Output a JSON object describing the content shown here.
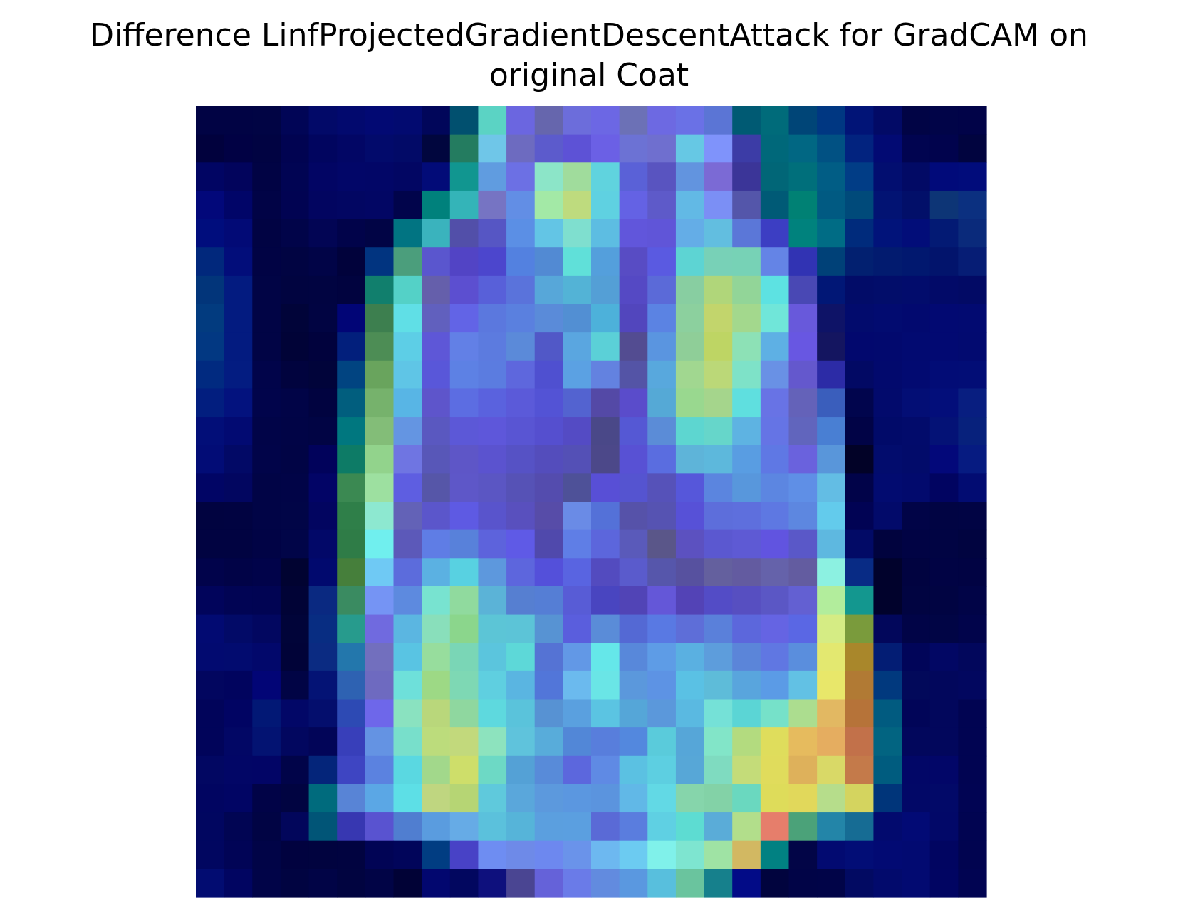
{
  "chart_data": {
    "type": "heatmap",
    "title_lines": [
      "Difference LinfProjectedGradientDescentAttack for GradCAM on",
      "original Coat"
    ],
    "grid": false,
    "axes_visible": false,
    "rows": 28,
    "cols": 28,
    "cells": [
      [
        "#010344",
        "#010344",
        "#010444",
        "#010556",
        "#020968",
        "#02096e",
        "#020973",
        "#020a70",
        "#01065a",
        "#01506f",
        "#5bd3c4",
        "#6b66e0",
        "#6666ad",
        "#6c6ddb",
        "#6c67e4",
        "#6c71b6",
        "#6d69e2",
        "#6a71e6",
        "#5b75d5",
        "#005a73",
        "#006b7a",
        "#004577",
        "#003782",
        "#011477",
        "#020a66",
        "#010445",
        "#010448",
        "#010348"
      ],
      [
        "#01013d",
        "#010144",
        "#010342",
        "#010351",
        "#01055f",
        "#020665",
        "#020a6b",
        "#020a67",
        "#01063e",
        "#247c60",
        "#6fc6e8",
        "#6d6bc0",
        "#5c5bcc",
        "#5d52d6",
        "#6b60e5",
        "#6c72d4",
        "#6f6fcf",
        "#66c8e4",
        "#7f93fb",
        "#3c3ca6",
        "#00687a",
        "#016783",
        "#015183",
        "#02237f",
        "#020a73",
        "#010450",
        "#01034d",
        "#01043f"
      ],
      [
        "#010563",
        "#02045c",
        "#010344",
        "#010453",
        "#020564",
        "#020668",
        "#020667",
        "#020663",
        "#020b78",
        "#119690",
        "#609ce0",
        "#6c70e4",
        "#8ce5c8",
        "#a0dc9c",
        "#60d3de",
        "#5a61d7",
        "#5954c0",
        "#6294df",
        "#7b6ad5",
        "#3b3598",
        "#016677",
        "#006f7b",
        "#015d85",
        "#013d86",
        "#020e70",
        "#020a65",
        "#010a7a",
        "#010c7b"
      ],
      [
        "#02087a",
        "#010568",
        "#010346",
        "#010352",
        "#020560",
        "#020662",
        "#020664",
        "#01044b",
        "#00817c",
        "#34b4b8",
        "#7674c3",
        "#628ee5",
        "#a3e9a6",
        "#bedb7e",
        "#5fd1e1",
        "#6462e4",
        "#5e5ac9",
        "#62b9e5",
        "#7b8ff5",
        "#5456aa",
        "#005a76",
        "#008174",
        "#015a82",
        "#004a7a",
        "#021373",
        "#020f69",
        "#0d3576",
        "#0b3080"
      ],
      [
        "#000d7d",
        "#020a76",
        "#010343",
        "#010449",
        "#020554",
        "#01034a",
        "#010445",
        "#017482",
        "#3ab3bd",
        "#524fa9",
        "#5656c4",
        "#5b8fe5",
        "#63c5e5",
        "#7fdfcf",
        "#5dbde2",
        "#6156db",
        "#6055d8",
        "#64ade7",
        "#62bee0",
        "#5b77d8",
        "#3c3ec3",
        "#00827d",
        "#006c85",
        "#002b7c",
        "#01137a",
        "#020d79",
        "#031a74",
        "#0a2a7b"
      ],
      [
        "#01287c",
        "#020d7a",
        "#010344",
        "#010442",
        "#010447",
        "#01023b",
        "#013480",
        "#4b9e7c",
        "#5a56ce",
        "#5244c5",
        "#4c46cd",
        "#5381e0",
        "#528ad3",
        "#60e0d9",
        "#549fdc",
        "#584cc4",
        "#5a5ae1",
        "#5dd4d3",
        "#78d1b7",
        "#77d2b6",
        "#6484e6",
        "#3133b3",
        "#004178",
        "#022070",
        "#021b6f",
        "#01186f",
        "#02146c",
        "#061d75"
      ],
      [
        "#02357a",
        "#031b80",
        "#010445",
        "#010440",
        "#010441",
        "#01033f",
        "#117f6d",
        "#54d1c7",
        "#655fab",
        "#5c4fd0",
        "#5860d9",
        "#5a73db",
        "#57a7d9",
        "#53b3d6",
        "#549fd6",
        "#5549c4",
        "#5b6ad8",
        "#88cea1",
        "#b0d67a",
        "#92d598",
        "#5de2e2",
        "#4948b4",
        "#011776",
        "#020c68",
        "#020d6a",
        "#020c6c",
        "#020a68",
        "#020a65"
      ],
      [
        "#023b7f",
        "#031b80",
        "#010445",
        "#010439",
        "#010442",
        "#010576",
        "#3d7f4f",
        "#60dfe6",
        "#6160be",
        "#6264e6",
        "#5b78de",
        "#5a80df",
        "#5a8bd9",
        "#528fd3",
        "#4db1da",
        "#5246bd",
        "#5b83e3",
        "#8cd09e",
        "#c2d56c",
        "#a3d88d",
        "#70e6d9",
        "#6859db",
        "#0e1367",
        "#020b6d",
        "#020b70",
        "#02096f",
        "#020972",
        "#020a71"
      ],
      [
        "#023882",
        "#031b80",
        "#010445",
        "#010337",
        "#01023d",
        "#021f7c",
        "#4d8d55",
        "#5dcee6",
        "#5e57d7",
        "#6280e6",
        "#5c7bdf",
        "#5b8ad9",
        "#5158c7",
        "#5aa6e0",
        "#5bd0d7",
        "#534c91",
        "#5a95e0",
        "#8fce98",
        "#bed564",
        "#8de1b6",
        "#5eb0e4",
        "#6857e2",
        "#141560",
        "#02086e",
        "#02096e",
        "#020a71",
        "#020972",
        "#020a70"
      ],
      [
        "#012a80",
        "#031c81",
        "#01044a",
        "#01033e",
        "#01043a",
        "#014481",
        "#69a45d",
        "#5fc5e6",
        "#5957d9",
        "#5d81e4",
        "#5b7ce0",
        "#5e67dd",
        "#4f50d0",
        "#5ba1e3",
        "#6382e0",
        "#5454a6",
        "#58a8dd",
        "#a1d790",
        "#bbd878",
        "#7ee2c8",
        "#6991e5",
        "#6458cd",
        "#2c2ba6",
        "#020964",
        "#02096d",
        "#020a71",
        "#020c76",
        "#020d76"
      ],
      [
        "#021e7f",
        "#03127e",
        "#01044b",
        "#010447",
        "#010340",
        "#015e7e",
        "#76b26c",
        "#58b5e5",
        "#5e55cb",
        "#5c6de2",
        "#5a62de",
        "#5b5ad9",
        "#5353d5",
        "#5363d0",
        "#5449a6",
        "#5a4ccb",
        "#55a9d6",
        "#99d88f",
        "#a5d58c",
        "#5fdfdf",
        "#6873e5",
        "#6462b9",
        "#3a5ebc",
        "#01054d",
        "#020a6c",
        "#030e75",
        "#030e7a",
        "#081e80"
      ],
      [
        "#020e78",
        "#020a72",
        "#010448",
        "#010446",
        "#010444",
        "#00777f",
        "#83bd78",
        "#6495e2",
        "#5a58c0",
        "#5c58d7",
        "#5e57da",
        "#5955d3",
        "#554fcf",
        "#544bc4",
        "#4a4888",
        "#5558d4",
        "#5b8cd7",
        "#5dd6d0",
        "#66d6ca",
        "#5eb3e2",
        "#6574e5",
        "#6165bd",
        "#497fd3",
        "#010346",
        "#010a69",
        "#020b6b",
        "#041276",
        "#07217c"
      ],
      [
        "#020c76",
        "#020966",
        "#010449",
        "#010445",
        "#01025b",
        "#0d7b66",
        "#92d38c",
        "#6f75e2",
        "#5857b8",
        "#5e56c7",
        "#5b53cf",
        "#5652c5",
        "#544dbc",
        "#5450b6",
        "#4c4889",
        "#5851d4",
        "#5a6de0",
        "#5eb4d9",
        "#5db8dc",
        "#599de2",
        "#5f78e4",
        "#6a62dd",
        "#5996da",
        "#020227",
        "#020c6d",
        "#020b6a",
        "#03087a",
        "#061b81"
      ],
      [
        "#010565",
        "#020660",
        "#010446",
        "#010447",
        "#020466",
        "#3b8952",
        "#9de0a0",
        "#5e5ee1",
        "#5656a8",
        "#5e57c8",
        "#5b56c3",
        "#5652b6",
        "#544cae",
        "#4e5198",
        "#584fd6",
        "#5554d0",
        "#5652b9",
        "#5657da",
        "#5b85df",
        "#5897dc",
        "#5c86e1",
        "#5f8fe6",
        "#63bde4",
        "#010349",
        "#020b70",
        "#020a6d",
        "#010461",
        "#020c72"
      ],
      [
        "#010340",
        "#010341",
        "#010446",
        "#010547",
        "#020560",
        "#2f7f49",
        "#8de8d0",
        "#6362b7",
        "#5b56cb",
        "#5e5ae3",
        "#5954cc",
        "#5950be",
        "#574ca8",
        "#6a8be6",
        "#5471d8",
        "#5652a9",
        "#5653b2",
        "#5751d7",
        "#5d6edb",
        "#5e6fdd",
        "#5e78e2",
        "#5d87e0",
        "#63cbec",
        "#010354",
        "#020a6a",
        "#010447",
        "#010443",
        "#010444"
      ],
      [
        "#010341",
        "#010341",
        "#010345",
        "#010548",
        "#020868",
        "#2f7c47",
        "#70efee",
        "#5c59b9",
        "#5f7de5",
        "#5881da",
        "#5d63dc",
        "#5f5ae6",
        "#5049ac",
        "#5f7ee6",
        "#5c66dc",
        "#5a5aba",
        "#5a5689",
        "#5c51c0",
        "#5b58d0",
        "#5e5ad4",
        "#6154e0",
        "#5a58c8",
        "#5eb8e0",
        "#020a66",
        "#01033e",
        "#010344",
        "#010443",
        "#010440"
      ],
      [
        "#01034b",
        "#010347",
        "#01034a",
        "#010331",
        "#01096e",
        "#467f3b",
        "#6fc9f4",
        "#5c6cdc",
        "#5bb1e2",
        "#58d1e1",
        "#5d98dd",
        "#5d66dd",
        "#5450da",
        "#5964e1",
        "#534bbf",
        "#5a5bcc",
        "#5656ab",
        "#57519f",
        "#64609e",
        "#635ba0",
        "#6562aa",
        "#635ca0",
        "#8cf1e1",
        "#082b85",
        "#01022c",
        "#010340",
        "#010344",
        "#010343"
      ],
      [
        "#01045b",
        "#010454",
        "#010453",
        "#010336",
        "#0a2981",
        "#3a8b61",
        "#7594f4",
        "#5d8adf",
        "#78e3d0",
        "#90da9e",
        "#5bb3d7",
        "#567fd1",
        "#557ed5",
        "#585cd6",
        "#4945c0",
        "#5144b6",
        "#6457d8",
        "#5343b6",
        "#534cc6",
        "#574fc1",
        "#5b57c5",
        "#6360d2",
        "#b2ed9c",
        "#13978f",
        "#01022c",
        "#010441",
        "#010442",
        "#010447"
      ],
      [
        "#020a72",
        "#020a67",
        "#020760",
        "#010439",
        "#082d82",
        "#279b8d",
        "#706adf",
        "#5bb6e1",
        "#89dfbb",
        "#8bd68c",
        "#5cc5d6",
        "#5cc4d7",
        "#5793d3",
        "#5a5edd",
        "#5a8cd8",
        "#5469d4",
        "#5979e3",
        "#5e6ed8",
        "#5a80da",
        "#5c67dc",
        "#6564e3",
        "#5a67e4",
        "#d5ec84",
        "#7a9b3c",
        "#02075b",
        "#010447",
        "#010545",
        "#01044b"
      ],
      [
        "#020a70",
        "#020b6f",
        "#02086b",
        "#010338",
        "#0b2b82",
        "#2377ac",
        "#726fbe",
        "#59c4e3",
        "#97dd9d",
        "#7ad6b6",
        "#5bc5dd",
        "#5dd8d8",
        "#5573d4",
        "#6298e6",
        "#65e7e9",
        "#5888da",
        "#5e9ce6",
        "#5ab0e1",
        "#5d9ddc",
        "#5b85d9",
        "#6077e2",
        "#5a8edd",
        "#e3e870",
        "#a9872b",
        "#031d74",
        "#010559",
        "#020764",
        "#02075c"
      ],
      [
        "#02065f",
        "#01045e",
        "#020576",
        "#010445",
        "#041375",
        "#2e62b2",
        "#6e6ac0",
        "#6ee0da",
        "#9dd985",
        "#7ed8b4",
        "#5fcfe0",
        "#5ab5e1",
        "#5276d9",
        "#6bbaee",
        "#6ae5e6",
        "#5b98dc",
        "#5d93e4",
        "#5ac1e4",
        "#5ebcd9",
        "#59a5dd",
        "#5b9be6",
        "#62c1e4",
        "#e8e76a",
        "#b17a34",
        "#01397e",
        "#02095a",
        "#02075c",
        "#02075f"
      ],
      [
        "#01045a",
        "#010463",
        "#021875",
        "#020767",
        "#040e6d",
        "#2d4ab4",
        "#6e67ea",
        "#8ae2c0",
        "#b9d77b",
        "#8fd79f",
        "#5ed9de",
        "#5ac3db",
        "#5792d3",
        "#5aa0df",
        "#5bc4e2",
        "#55a6d8",
        "#5b98db",
        "#5ab9e1",
        "#75e1d7",
        "#5bd5d5",
        "#76e1c9",
        "#acdd8f",
        "#e2b862",
        "#b67339",
        "#015b80",
        "#010558",
        "#02075c",
        "#010452"
      ],
      [
        "#01045a",
        "#020765",
        "#031372",
        "#02075f",
        "#020558",
        "#383fba",
        "#6493e3",
        "#78dfcb",
        "#bcdc7c",
        "#c2d97c",
        "#8de3be",
        "#5fc3dc",
        "#58acda",
        "#5287d7",
        "#587edc",
        "#5388de",
        "#5acbdb",
        "#56a6d8",
        "#82e5c8",
        "#b3db7f",
        "#dfdd5c",
        "#e6bb5e",
        "#e5ad60",
        "#c2714a",
        "#026481",
        "#02075c",
        "#02075c",
        "#010452"
      ],
      [
        "#020762",
        "#020666",
        "#020566",
        "#010449",
        "#04257a",
        "#3e45c2",
        "#5b82e0",
        "#5ad8e1",
        "#a2d88b",
        "#cede6a",
        "#6dd9c5",
        "#54a1d6",
        "#588bd9",
        "#5c67dd",
        "#5f8ae4",
        "#5bc1e2",
        "#5dcfe1",
        "#57a7d7",
        "#7fdbc0",
        "#c4dc79",
        "#e0dc5c",
        "#deb15b",
        "#d9d967",
        "#c47a4a",
        "#005c7f",
        "#020767",
        "#020668",
        "#010452"
      ],
      [
        "#010561",
        "#010564",
        "#010347",
        "#010441",
        "#006b7d",
        "#5884d6",
        "#5ba7e5",
        "#5ddfe6",
        "#bfd680",
        "#b6d574",
        "#5fc9dc",
        "#5aa7db",
        "#5c99dd",
        "#5b97e0",
        "#5b94de",
        "#61b8e7",
        "#62d9e5",
        "#86d5ab",
        "#83d2a7",
        "#6ad8bf",
        "#dedc5a",
        "#e1d85b",
        "#b6dd8b",
        "#d4d45f",
        "#00357a",
        "#020867",
        "#020968",
        "#010453"
      ],
      [
        "#010660",
        "#010553",
        "#010444",
        "#02065b",
        "#015577",
        "#3737b1",
        "#5953d0",
        "#507ed0",
        "#5a9cdf",
        "#66abe6",
        "#5bc1dc",
        "#56b4d9",
        "#5b9fdf",
        "#5b9fe0",
        "#5a6ad6",
        "#5a7dde",
        "#5fd0e3",
        "#5ddcd2",
        "#5aacd8",
        "#b2de8b",
        "#e67e6b",
        "#4ba279",
        "#2385a8",
        "#166c94",
        "#020a6e",
        "#020a75",
        "#020868",
        "#010451"
      ],
      [
        "#010660",
        "#010456",
        "#010447",
        "#01023f",
        "#01033f",
        "#010340",
        "#010455",
        "#01055a",
        "#013d82",
        "#4842c6",
        "#6e8df2",
        "#6e8ae8",
        "#6d88ef",
        "#6a93ea",
        "#6db8f0",
        "#6ccbf1",
        "#80f1ea",
        "#7ee5d0",
        "#9fe3a4",
        "#d2b862",
        "#018182",
        "#020547",
        "#020a71",
        "#020d76",
        "#020a73",
        "#020a71",
        "#010561",
        "#010450"
      ],
      [
        "#020c71",
        "#010561",
        "#010448",
        "#010441",
        "#010446",
        "#010440",
        "#010446",
        "#010236",
        "#02076f",
        "#02075f",
        "#0e107d",
        "#4a4592",
        "#6562d9",
        "#6a7be8",
        "#628bdf",
        "#5a98e0",
        "#58bfdd",
        "#6ac49e",
        "#16808c",
        "#020b87",
        "#01043e",
        "#010447",
        "#010448",
        "#020a62",
        "#020a6c",
        "#020a71",
        "#010562",
        "#010452"
      ]
    ]
  }
}
